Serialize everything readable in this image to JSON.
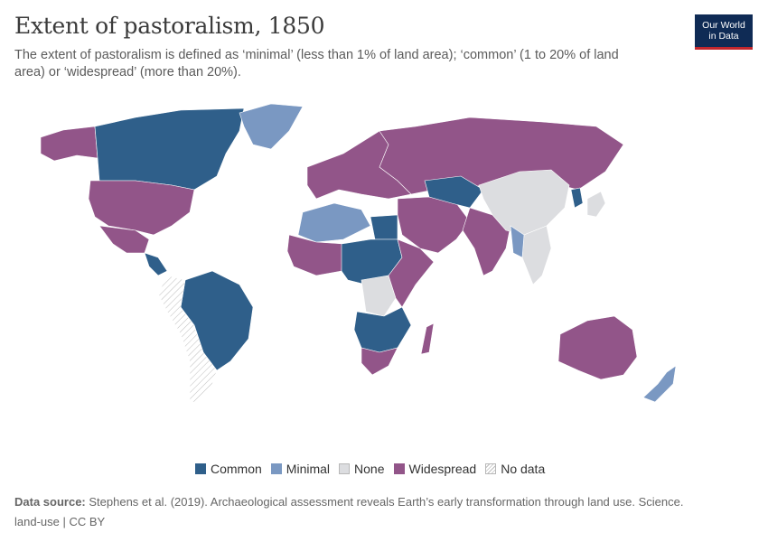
{
  "title": "Extent of pastoralism, 1850",
  "subtitle": "The extent of pastoralism is defined as ‘minimal’ (less than 1% of land area); ‘common’ (1 to 20% of land area) or ‘widespread’ (more than 20%).",
  "logo": {
    "line1": "Our World",
    "line2": "in Data"
  },
  "legend": [
    {
      "label": "Common",
      "color": "#2f5f8a"
    },
    {
      "label": "Minimal",
      "color": "#7a98c2"
    },
    {
      "label": "None",
      "color": "#dcdde0"
    },
    {
      "label": "Widespread",
      "color": "#925589"
    },
    {
      "label": "No data",
      "color": "hatch"
    }
  ],
  "source": {
    "label": "Data source:",
    "text": "Stephens et al. (2019). Archaeological assessment reveals Earth’s early transformation through land use. Science."
  },
  "footer": "land-use | CC BY",
  "regions": [
    {
      "name": "Alaska",
      "category": "Widespread"
    },
    {
      "name": "Canada",
      "category": "Common"
    },
    {
      "name": "United States",
      "category": "Widespread"
    },
    {
      "name": "Mexico",
      "category": "Widespread"
    },
    {
      "name": "Central America",
      "category": "Common"
    },
    {
      "name": "Greenland",
      "category": "Minimal"
    },
    {
      "name": "Brazil",
      "category": "Common"
    },
    {
      "name": "Rest of South America",
      "category": "No data"
    },
    {
      "name": "Europe",
      "category": "Widespread"
    },
    {
      "name": "Russia",
      "category": "Widespread"
    },
    {
      "name": "Maghreb",
      "category": "Minimal"
    },
    {
      "name": "Egypt",
      "category": "Common"
    },
    {
      "name": "West Africa",
      "category": "Widespread"
    },
    {
      "name": "Central Africa",
      "category": "Common"
    },
    {
      "name": "Congo Basin",
      "category": "None"
    },
    {
      "name": "East Africa",
      "category": "Widespread"
    },
    {
      "name": "Southern Africa",
      "category": "Common"
    },
    {
      "name": "South Africa",
      "category": "Widespread"
    },
    {
      "name": "Madagascar",
      "category": "Widespread"
    },
    {
      "name": "Middle East",
      "category": "Widespread"
    },
    {
      "name": "Central Asia",
      "category": "Common"
    },
    {
      "name": "India",
      "category": "Widespread"
    },
    {
      "name": "China",
      "category": "None"
    },
    {
      "name": "Korea",
      "category": "Common"
    },
    {
      "name": "Japan",
      "category": "None"
    },
    {
      "name": "Southeast Asia",
      "category": "None"
    },
    {
      "name": "Myanmar",
      "category": "Minimal"
    },
    {
      "name": "Australia",
      "category": "Widespread"
    },
    {
      "name": "New Zealand",
      "category": "Minimal"
    }
  ]
}
